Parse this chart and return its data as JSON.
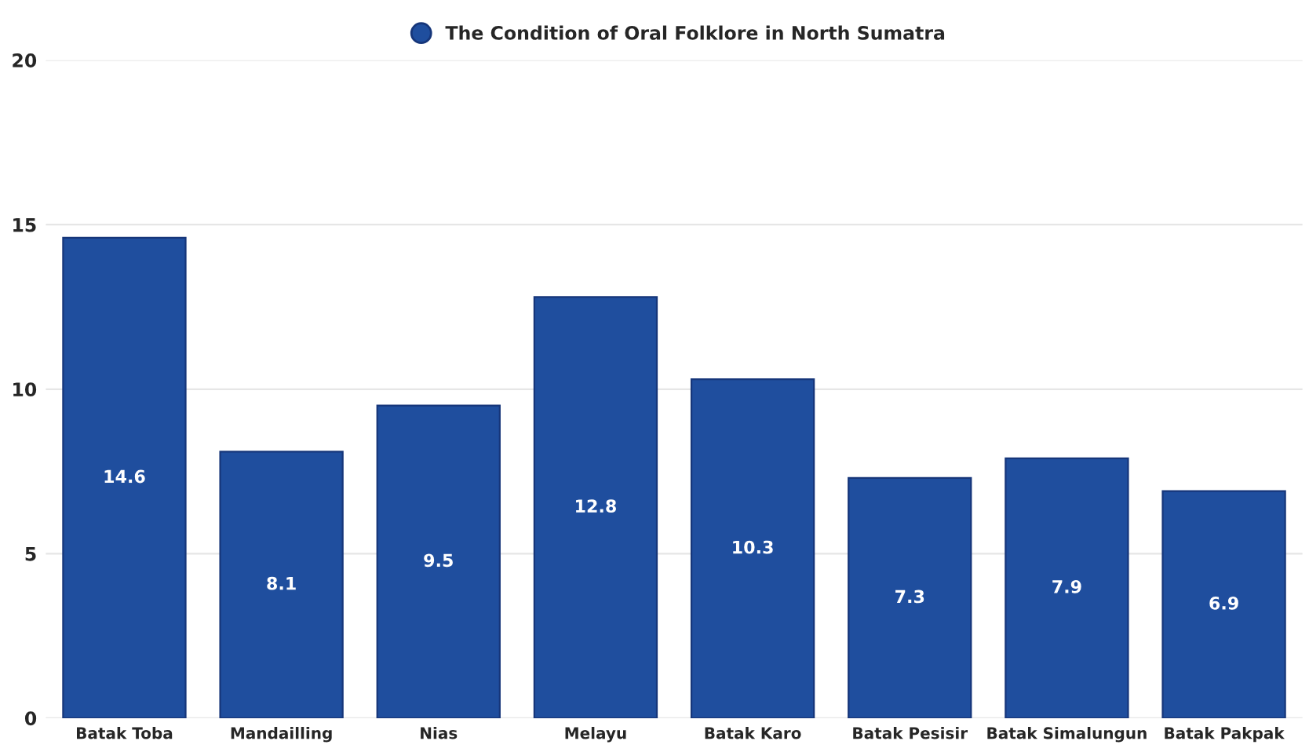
{
  "chart_data": {
    "type": "bar",
    "categories": [
      "Batak Toba",
      "Mandailling",
      "Nias",
      "Melayu",
      "Batak Karo",
      "Batak Pesisir",
      "Batak Simalungun",
      "Batak Pakpak"
    ],
    "series": [
      {
        "name": "The Condition of Oral Folklore in North Sumatra",
        "color": "#1f4e9e",
        "values": [
          14.6,
          8.1,
          9.5,
          12.8,
          10.3,
          7.3,
          7.9,
          6.9
        ]
      }
    ],
    "ylim": [
      0,
      20
    ],
    "yticks": [
      0,
      5,
      10,
      15,
      20
    ],
    "grid": "y",
    "legend": "top",
    "data_labels": true
  }
}
